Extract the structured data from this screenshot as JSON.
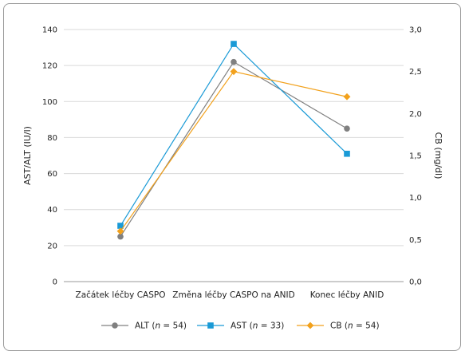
{
  "chart_data": {
    "type": "line",
    "categories": [
      "Začátek léčby CASPO",
      "Změna léčby CASPO na ANID",
      "Konec léčby ANID"
    ],
    "left_axis": {
      "label": "AST/ALT (IU/l)",
      "range": [
        0,
        140
      ],
      "ticks": [
        "0",
        "20",
        "40",
        "60",
        "80",
        "100",
        "120",
        "140"
      ]
    },
    "right_axis": {
      "label": "CB (mg/dl)",
      "range": [
        0,
        3.0
      ],
      "ticks": [
        "0,0",
        "0,5",
        "1,0",
        "1,5",
        "2,0",
        "2,5",
        "3,0"
      ]
    },
    "grid": "horizontal",
    "legend_position": "bottom",
    "series": [
      {
        "key": "alt",
        "name_prefix": "ALT (",
        "name_n": "n",
        "name_suffix": " = 54)",
        "axis": "left",
        "color": "#808080",
        "marker": "circle",
        "values": [
          25,
          122,
          85
        ]
      },
      {
        "key": "ast",
        "name_prefix": "AST (",
        "name_n": "n",
        "name_suffix": " = 33)",
        "axis": "left",
        "color": "#1a9ad6",
        "marker": "square",
        "values": [
          31,
          132,
          71
        ]
      },
      {
        "key": "cb",
        "name_prefix": "CB (",
        "name_n": "n",
        "name_suffix": " = 54)",
        "axis": "right",
        "color": "#f2a11c",
        "marker": "diamond",
        "values": [
          0.6,
          2.5,
          2.2
        ]
      }
    ]
  }
}
